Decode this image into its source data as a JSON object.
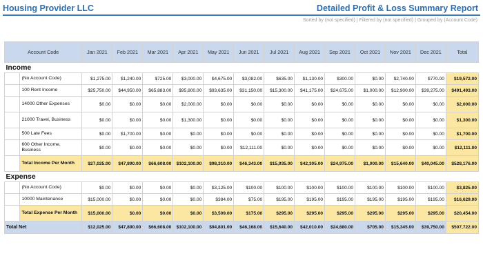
{
  "header": {
    "company": "Housing Provider LLC",
    "report_title": "Detailed Profit & Loss Summary Report",
    "subtitle": "Sorted by (not specified) | Filtered by (not specified) | Grouped by (Account Code)"
  },
  "columns": [
    "Account Code",
    "Jan 2021",
    "Feb 2021",
    "Mar 2021",
    "Apr 2021",
    "May 2021",
    "Jun 2021",
    "Jul 2021",
    "Aug 2021",
    "Sep 2021",
    "Oct 2021",
    "Nov 2021",
    "Dec 2021",
    "Total"
  ],
  "sections": {
    "income": {
      "title": "Income",
      "rows": [
        {
          "label": "(No Account Code)",
          "values": [
            "$1,275.00",
            "$1,240.00",
            "$725.00",
            "$3,000.00",
            "$4,675.00",
            "$3,082.00",
            "$635.00",
            "$1,130.00",
            "$300.00",
            "$0.00",
            "$2,740.00",
            "$770.00",
            "$19,572.00"
          ]
        },
        {
          "label": "100 Rent Income",
          "values": [
            "$25,750.00",
            "$44,950.00",
            "$65,883.00",
            "$95,800.00",
            "$93,635.00",
            "$31,150.00",
            "$15,300.00",
            "$41,175.00",
            "$24,675.00",
            "$1,000.00",
            "$12,900.00",
            "$39,275.00",
            "$491,493.00"
          ]
        },
        {
          "label": "14000 Other Expenses",
          "values": [
            "$0.00",
            "$0.00",
            "$0.00",
            "$2,000.00",
            "$0.00",
            "$0.00",
            "$0.00",
            "$0.00",
            "$0.00",
            "$0.00",
            "$0.00",
            "$0.00",
            "$2,000.00"
          ]
        },
        {
          "label": "21000 Travel, Business",
          "values": [
            "$0.00",
            "$0.00",
            "$0.00",
            "$1,300.00",
            "$0.00",
            "$0.00",
            "$0.00",
            "$0.00",
            "$0.00",
            "$0.00",
            "$0.00",
            "$0.00",
            "$1,300.00"
          ]
        },
        {
          "label": "500 Late Fees",
          "values": [
            "$0.00",
            "$1,700.00",
            "$0.00",
            "$0.00",
            "$0.00",
            "$0.00",
            "$0.00",
            "$0.00",
            "$0.00",
            "$0.00",
            "$0.00",
            "$0.00",
            "$1,700.00"
          ]
        },
        {
          "label": "600 Other Income, Business",
          "values": [
            "$0.00",
            "$0.00",
            "$0.00",
            "$0.00",
            "$0.00",
            "$12,111.00",
            "$0.00",
            "$0.00",
            "$0.00",
            "$0.00",
            "$0.00",
            "$0.00",
            "$12,111.00"
          ]
        }
      ],
      "total": {
        "label": "Total Income Per Month",
        "values": [
          "$27,025.00",
          "$47,890.00",
          "$66,608.00",
          "$102,100.00",
          "$98,310.00",
          "$46,343.00",
          "$15,935.00",
          "$42,305.00",
          "$24,975.00",
          "$1,000.00",
          "$15,640.00",
          "$40,045.00",
          "$528,176.00"
        ]
      }
    },
    "expense": {
      "title": "Expense",
      "rows": [
        {
          "label": "(No Account Code)",
          "values": [
            "$0.00",
            "$0.00",
            "$0.00",
            "$0.00",
            "$3,125.00",
            "$100.00",
            "$100.00",
            "$100.00",
            "$100.00",
            "$100.00",
            "$100.00",
            "$100.00",
            "$3,825.00"
          ]
        },
        {
          "label": "10000 Maintenance",
          "values": [
            "$15,000.00",
            "$0.00",
            "$0.00",
            "$0.00",
            "$384.00",
            "$75.00",
            "$195.00",
            "$195.00",
            "$195.00",
            "$195.00",
            "$195.00",
            "$195.00",
            "$16,629.00"
          ]
        }
      ],
      "total": {
        "label": "Total Expense Per Month",
        "values": [
          "$15,000.00",
          "$0.00",
          "$0.00",
          "$0.00",
          "$3,509.00",
          "$175.00",
          "$295.00",
          "$295.00",
          "$295.00",
          "$295.00",
          "$295.00",
          "$295.00",
          "$20,454.00"
        ]
      }
    }
  },
  "net": {
    "label": "Total Net",
    "values": [
      "$12,025.00",
      "$47,890.00",
      "$66,608.00",
      "$102,100.00",
      "$94,801.00",
      "$46,168.00",
      "$15,640.00",
      "$42,010.00",
      "$24,680.00",
      "$705.00",
      "$15,345.00",
      "$39,750.00",
      "$507,722.00"
    ]
  },
  "colors": {
    "brand_blue": "#2b6fb0",
    "header_fill": "#c9d8ec",
    "total_fill": "#fbe7a1"
  }
}
